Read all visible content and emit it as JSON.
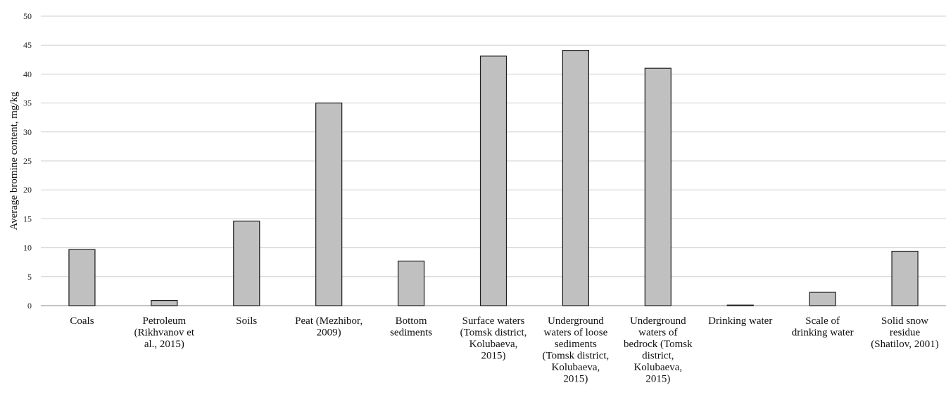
{
  "chart_data": {
    "type": "bar",
    "title": "",
    "xlabel": "",
    "ylabel": "Average bromine content, mg/kg",
    "ylim": [
      0,
      50
    ],
    "yticks": [
      0,
      5,
      10,
      15,
      20,
      25,
      30,
      35,
      40,
      45,
      50
    ],
    "grid": true,
    "legend": "none",
    "bar_color": "#c0c0c0",
    "bar_edge_color": "#1a1a1a",
    "categories": [
      [
        "Coals"
      ],
      [
        "Petroleum",
        "(Rikhvanov et",
        "al., 2015)"
      ],
      [
        "Soils"
      ],
      [
        "Peat (Mezhibor,",
        "2009)"
      ],
      [
        "Bottom",
        "sediments"
      ],
      [
        "Surface waters",
        "(Tomsk district,",
        "Kolubaeva,",
        "2015)"
      ],
      [
        "Underground",
        "waters of loose",
        "sediments",
        "(Tomsk district,",
        "Kolubaeva,",
        "2015)"
      ],
      [
        "Underground",
        "waters of",
        "bedrock (Tomsk",
        "district,",
        "Kolubaeva,",
        "2015)"
      ],
      [
        "Drinking water"
      ],
      [
        "Scale of",
        "drinking water"
      ],
      [
        "Solid snow",
        "residue",
        "(Shatilov, 2001)"
      ]
    ],
    "values": [
      9.7,
      0.9,
      14.6,
      35.0,
      7.7,
      43.1,
      44.1,
      41.0,
      0.1,
      2.3,
      9.4
    ]
  }
}
